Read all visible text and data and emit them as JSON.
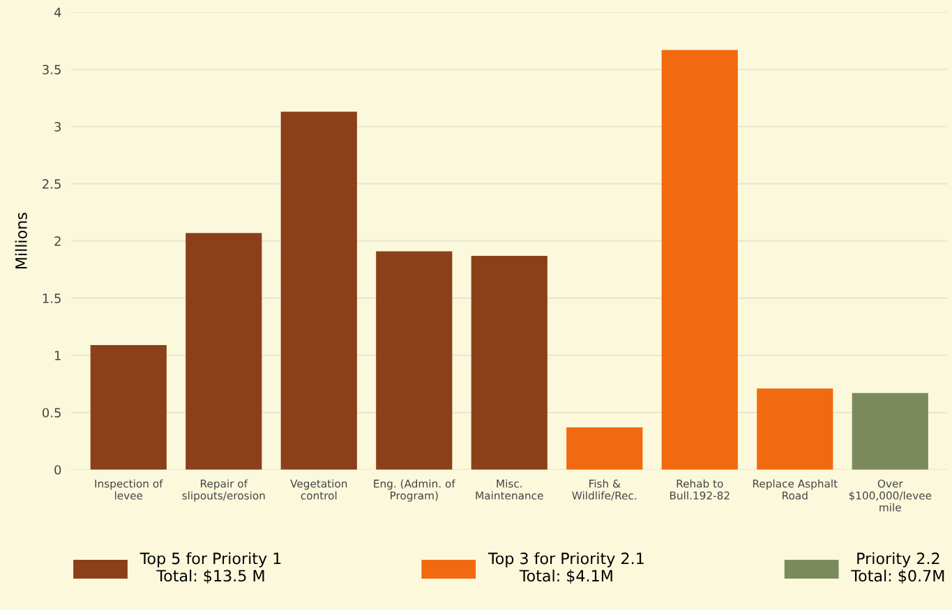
{
  "chart_data": {
    "type": "bar",
    "ylabel": "Millions",
    "categories": [
      "Inspection of\nlevee",
      "Repair of\nslipouts/erosion",
      "Vegetation\ncontrol",
      "Eng. (Admin. of\nProgram)",
      "Misc.\nMaintenance",
      "Fish &\nWildlife/Rec.",
      "Rehab to\nBull.192-82",
      "Replace Asphalt\nRoad",
      "Over\n$100,000/levee\nmile"
    ],
    "series": [
      {
        "name": "Top 5 for Priority 1\nTotal: $13.5 M",
        "color": "#8b401a",
        "values": [
          1.09,
          2.07,
          3.13,
          1.91,
          1.87,
          null,
          null,
          null,
          null
        ]
      },
      {
        "name": "Top 3 for Priority 2.1\nTotal: $4.1M",
        "color": "#f26a10",
        "values": [
          null,
          null,
          null,
          null,
          null,
          0.37,
          3.67,
          0.71,
          null
        ]
      },
      {
        "name": "Priority 2.2\nTotal: $0.7M",
        "color": "#7b8a5c",
        "values": [
          null,
          null,
          null,
          null,
          null,
          null,
          null,
          null,
          0.67
        ]
      }
    ],
    "stacked": true,
    "ylim": [
      0,
      4
    ],
    "yticks": [
      0,
      0.5,
      1,
      1.5,
      2,
      2.5,
      3,
      3.5,
      4
    ],
    "grid": "y",
    "legend": "bottom"
  }
}
